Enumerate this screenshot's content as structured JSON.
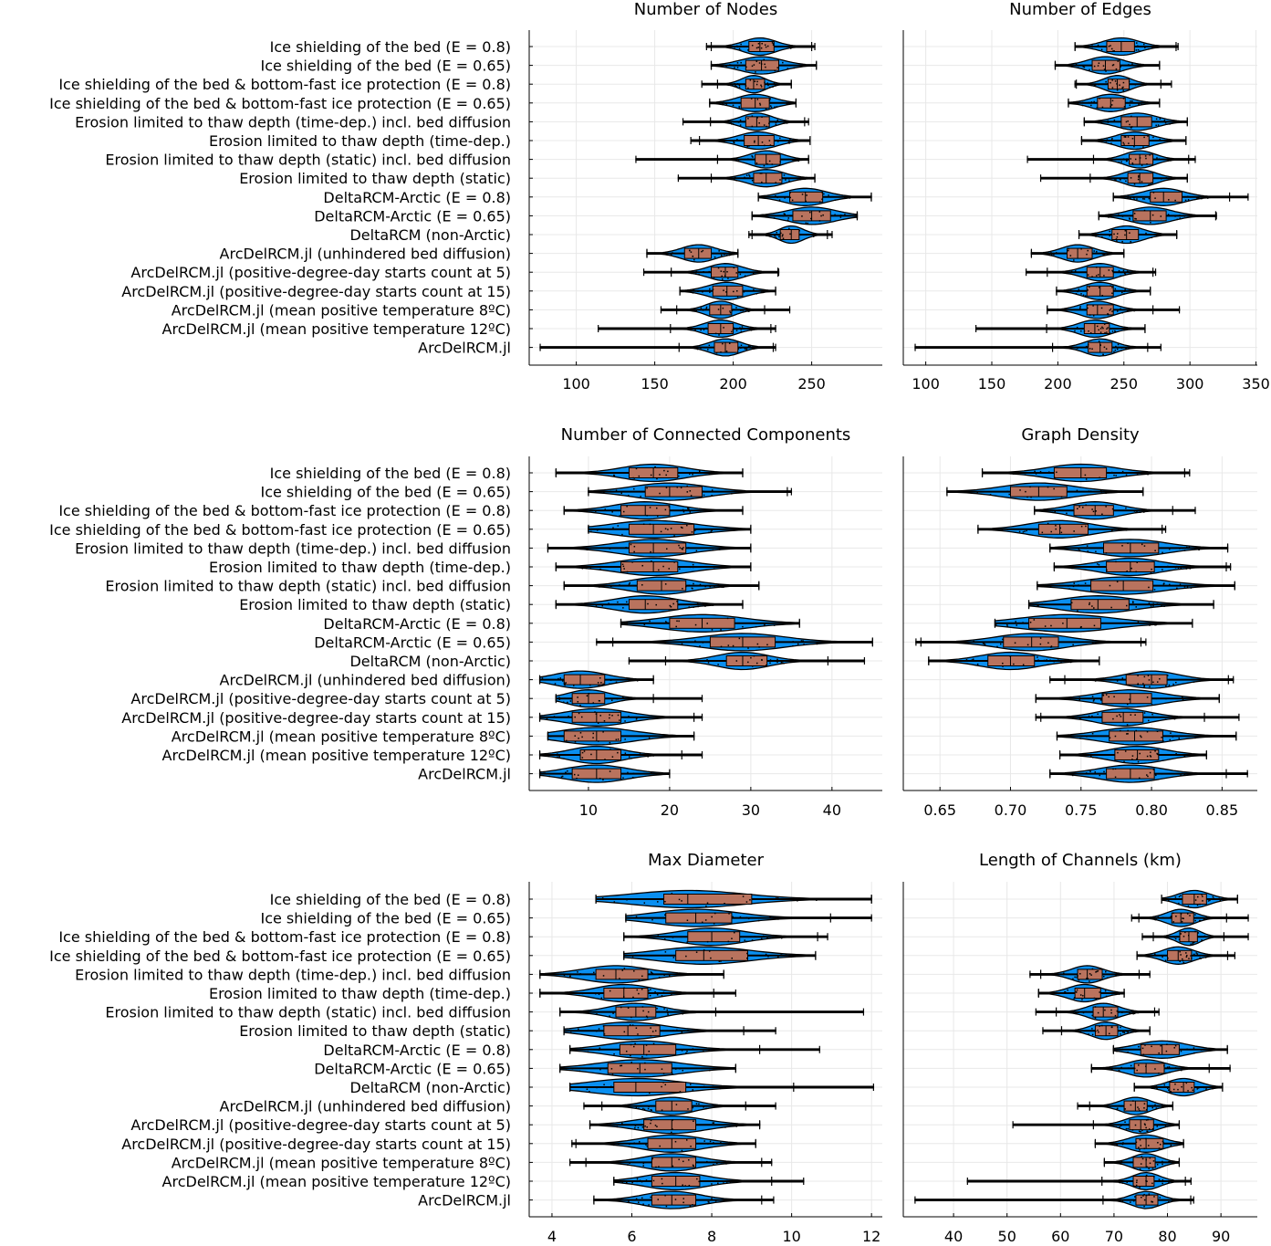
{
  "colors": {
    "violin": "#0a8ff0",
    "box": "#b9735e",
    "grid": "#e8e8e8",
    "axis": "#000000"
  },
  "categories": [
    "Ice shielding of the bed (E = 0.8)",
    "Ice shielding of the bed (E = 0.65)",
    "Ice shielding of the bed & bottom-fast ice protection (E = 0.8)",
    "Ice shielding of the bed & bottom-fast ice protection (E = 0.65)",
    "Erosion limited to thaw depth (time-dep.) incl. bed diffusion",
    "Erosion limited to thaw depth (time-dep.)",
    "Erosion limited to thaw depth (static) incl. bed diffusion",
    "Erosion limited to thaw depth (static)",
    "DeltaRCM-Arctic (E = 0.8)",
    "DeltaRCM-Arctic (E = 0.65)",
    "DeltaRCM (non-Arctic)",
    "ArcDelRCM.jl (unhindered bed diffusion)",
    "ArcDelRCM.jl (positive-degree-day starts count at 5)",
    "ArcDelRCM.jl (positive-degree-day starts count at 15)",
    "ArcDelRCM.jl (mean positive temperature 8ºC)",
    "ArcDelRCM.jl (mean positive temperature 12ºC)",
    "ArcDelRCM.jl"
  ],
  "chart_data": [
    {
      "type": "violin",
      "title": "Number of Nodes",
      "xlim": [
        70,
        295
      ],
      "ticks": [
        "100",
        "150",
        "200",
        "250"
      ],
      "tick_values": [
        100,
        150,
        200,
        250
      ],
      "grid": true,
      "stats_order": [
        "min",
        "q1",
        "median",
        "q3",
        "max"
      ],
      "series": [
        [
          183,
          210,
          217,
          226,
          252
        ],
        [
          186,
          208,
          218,
          229,
          253
        ],
        [
          180,
          208,
          213,
          220,
          237
        ],
        [
          185,
          205,
          214,
          223,
          240
        ],
        [
          168,
          208,
          215,
          223,
          248
        ],
        [
          173,
          207,
          216,
          226,
          249
        ],
        [
          138,
          214,
          221,
          230,
          248
        ],
        [
          165,
          213,
          221,
          231,
          252
        ],
        [
          216,
          236,
          246,
          257,
          288
        ],
        [
          212,
          238,
          250,
          262,
          279
        ],
        [
          210,
          230,
          237,
          242,
          263
        ],
        [
          145,
          169,
          178,
          186,
          203
        ],
        [
          143,
          186,
          195,
          203,
          229
        ],
        [
          166,
          187,
          196,
          206,
          227
        ],
        [
          154,
          185,
          192,
          199,
          236
        ],
        [
          114,
          184,
          192,
          200,
          227
        ],
        [
          77,
          188,
          195,
          203,
          227
        ]
      ]
    },
    {
      "type": "violin",
      "title": "Number of Edges",
      "xlim": [
        83,
        351
      ],
      "ticks": [
        "100",
        "150",
        "200",
        "250",
        "300",
        "350"
      ],
      "tick_values": [
        100,
        150,
        200,
        250,
        300,
        350
      ],
      "grid": true,
      "stats_order": [
        "min",
        "q1",
        "median",
        "q3",
        "max"
      ],
      "series": [
        [
          213,
          237,
          248,
          258,
          291
        ],
        [
          198,
          226,
          236,
          247,
          277
        ],
        [
          213,
          238,
          245,
          254,
          286
        ],
        [
          208,
          230,
          240,
          251,
          277
        ],
        [
          220,
          248,
          260,
          271,
          298
        ],
        [
          218,
          248,
          258,
          269,
          297
        ],
        [
          177,
          254,
          262,
          272,
          304
        ],
        [
          187,
          253,
          262,
          272,
          298
        ],
        [
          242,
          270,
          280,
          294,
          344
        ],
        [
          231,
          257,
          270,
          282,
          320
        ],
        [
          216,
          241,
          252,
          261,
          290
        ],
        [
          180,
          207,
          215,
          226,
          250
        ],
        [
          176,
          222,
          232,
          242,
          274
        ],
        [
          199,
          222,
          232,
          242,
          270
        ],
        [
          192,
          222,
          230,
          242,
          292
        ],
        [
          138,
          220,
          228,
          239,
          266
        ],
        [
          92,
          223,
          232,
          241,
          278
        ]
      ]
    },
    {
      "type": "violin",
      "title": "Number of Connected Components",
      "xlim": [
        2.7,
        46.2
      ],
      "ticks": [
        "10",
        "20",
        "30",
        "40"
      ],
      "tick_values": [
        10,
        20,
        30,
        40
      ],
      "grid": true,
      "stats_order": [
        "min",
        "q1",
        "median",
        "q3",
        "max"
      ],
      "series": [
        [
          6,
          15,
          18,
          21,
          29
        ],
        [
          10,
          17,
          20,
          24,
          35
        ],
        [
          7,
          14,
          17,
          20,
          29
        ],
        [
          10,
          15,
          18,
          23,
          30
        ],
        [
          5,
          15,
          18,
          22,
          30
        ],
        [
          6,
          14,
          18,
          21,
          30
        ],
        [
          7,
          16,
          19,
          22,
          31
        ],
        [
          6,
          15,
          17,
          21,
          29
        ],
        [
          14,
          20,
          24,
          28,
          36
        ],
        [
          11,
          25,
          29,
          33,
          45
        ],
        [
          15,
          27,
          29,
          32,
          44
        ],
        [
          4,
          7,
          9,
          12,
          18
        ],
        [
          6,
          8,
          10,
          12,
          24
        ],
        [
          4,
          8,
          11,
          14,
          24
        ],
        [
          5,
          7,
          11,
          14,
          23
        ],
        [
          4,
          9,
          11,
          14,
          24
        ],
        [
          4,
          8,
          11,
          14,
          20
        ]
      ]
    },
    {
      "type": "violin",
      "title": "Graph Density",
      "xlim": [
        0.624,
        0.875
      ],
      "ticks": [
        "0.65",
        "0.70",
        "0.75",
        "0.80",
        "0.85"
      ],
      "tick_values": [
        0.65,
        0.7,
        0.75,
        0.8,
        0.85
      ],
      "grid": true,
      "stats_order": [
        "min",
        "q1",
        "median",
        "q3",
        "max"
      ],
      "series": [
        [
          0.68,
          0.731,
          0.75,
          0.768,
          0.827
        ],
        [
          0.655,
          0.7,
          0.72,
          0.74,
          0.794
        ],
        [
          0.717,
          0.745,
          0.76,
          0.773,
          0.831
        ],
        [
          0.677,
          0.72,
          0.735,
          0.755,
          0.81
        ],
        [
          0.728,
          0.766,
          0.785,
          0.805,
          0.854
        ],
        [
          0.731,
          0.768,
          0.785,
          0.802,
          0.856
        ],
        [
          0.719,
          0.757,
          0.78,
          0.801,
          0.859
        ],
        [
          0.713,
          0.743,
          0.762,
          0.784,
          0.844
        ],
        [
          0.689,
          0.713,
          0.74,
          0.764,
          0.829
        ],
        [
          0.633,
          0.695,
          0.715,
          0.734,
          0.796
        ],
        [
          0.642,
          0.684,
          0.7,
          0.717,
          0.763
        ],
        [
          0.728,
          0.782,
          0.8,
          0.811,
          0.858
        ],
        [
          0.718,
          0.765,
          0.785,
          0.8,
          0.848
        ],
        [
          0.718,
          0.765,
          0.78,
          0.794,
          0.862
        ],
        [
          0.733,
          0.77,
          0.788,
          0.808,
          0.86
        ],
        [
          0.735,
          0.774,
          0.79,
          0.805,
          0.839
        ],
        [
          0.728,
          0.768,
          0.785,
          0.802,
          0.868
        ]
      ]
    },
    {
      "type": "violin",
      "title": "Max Diameter",
      "xlim": [
        3.43,
        12.27
      ],
      "ticks": [
        "4",
        "6",
        "8",
        "10",
        "12"
      ],
      "tick_values": [
        4,
        6,
        8,
        10,
        12
      ],
      "grid": true,
      "stats_order": [
        "min",
        "q1",
        "median",
        "q3",
        "max"
      ],
      "series": [
        [
          5.1,
          6.8,
          7.4,
          9.0,
          12.0
        ],
        [
          5.85,
          6.85,
          7.6,
          8.5,
          12.0
        ],
        [
          5.8,
          7.4,
          8.0,
          8.7,
          10.9
        ],
        [
          5.8,
          7.1,
          7.8,
          8.9,
          10.6
        ],
        [
          3.7,
          5.1,
          5.6,
          6.4,
          8.3
        ],
        [
          3.7,
          5.3,
          5.8,
          6.4,
          8.6
        ],
        [
          4.2,
          5.6,
          6.1,
          6.6,
          11.8
        ],
        [
          4.3,
          5.3,
          5.9,
          6.7,
          9.6
        ],
        [
          4.45,
          5.7,
          6.3,
          7.1,
          10.7
        ],
        [
          4.2,
          5.4,
          6.2,
          7.0,
          8.6
        ],
        [
          4.45,
          5.55,
          6.1,
          7.35,
          12.05
        ],
        [
          4.8,
          6.6,
          7.0,
          7.5,
          9.6
        ],
        [
          4.95,
          6.3,
          7.0,
          7.6,
          9.2
        ],
        [
          4.5,
          6.4,
          7.0,
          7.6,
          9.1
        ],
        [
          4.45,
          6.5,
          7.0,
          7.6,
          9.5
        ],
        [
          5.55,
          6.5,
          7.1,
          7.7,
          10.3
        ],
        [
          5.05,
          6.5,
          7.0,
          7.6,
          9.55
        ]
      ]
    },
    {
      "type": "violin",
      "title": "Length of Channels (km)",
      "xlim": [
        30.6,
        96.8
      ],
      "ticks": [
        "40",
        "50",
        "60",
        "70",
        "80",
        "90"
      ],
      "tick_values": [
        40,
        50,
        60,
        70,
        80,
        90
      ],
      "grid": true,
      "stats_order": [
        "min",
        "q1",
        "median",
        "q3",
        "max"
      ],
      "series": [
        [
          78.9,
          82.8,
          85,
          87.3,
          93.1
        ],
        [
          73.3,
          80.8,
          82.5,
          84.9,
          95.1
        ],
        [
          75.3,
          82.3,
          84,
          85.6,
          95.1
        ],
        [
          74.3,
          80,
          82,
          84.5,
          92.6
        ],
        [
          54.3,
          63.2,
          65,
          67.8,
          76.7
        ],
        [
          55.9,
          62.7,
          64.5,
          67.5,
          71.9
        ],
        [
          55.4,
          66.1,
          68,
          70.7,
          78.4
        ],
        [
          56.7,
          66.5,
          68.5,
          70.7,
          76.7
        ],
        [
          69.9,
          75,
          79,
          82.2,
          91.2
        ],
        [
          65.8,
          73.8,
          76,
          79.4,
          91.7
        ],
        [
          73.8,
          80.4,
          83,
          85,
          90.3
        ],
        [
          63.2,
          71.9,
          74,
          76.2,
          81
        ],
        [
          51.1,
          72.9,
          75,
          77.4,
          82.2
        ],
        [
          66.5,
          74.1,
          76,
          79.2,
          83
        ],
        [
          68.2,
          73.6,
          76,
          77.7,
          82.2
        ],
        [
          42.6,
          73.6,
          76,
          77.5,
          84.4
        ],
        [
          32.8,
          74.1,
          76,
          78.2,
          84.9
        ]
      ]
    }
  ]
}
